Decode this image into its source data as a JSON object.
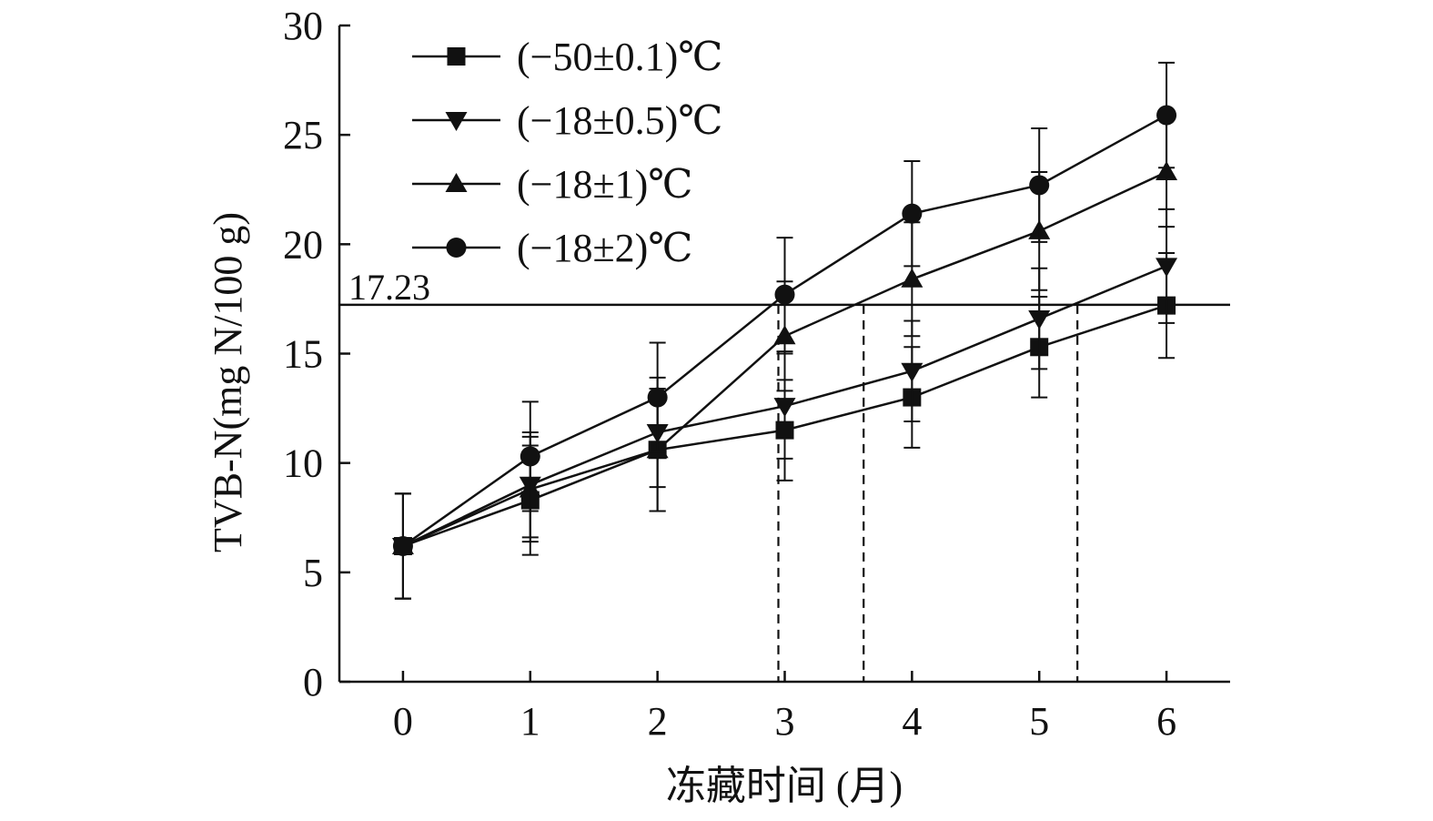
{
  "chart_data": {
    "type": "line",
    "xlabel": "冻藏时间 (月)",
    "ylabel": "TVB-N(mg N/100 g)",
    "x": [
      0,
      1,
      2,
      3,
      4,
      5,
      6
    ],
    "x_tick_labels": [
      "0",
      "1",
      "2",
      "3",
      "4",
      "5",
      "6"
    ],
    "xlim": [
      -0.5,
      6.5
    ],
    "ylim": [
      0,
      30
    ],
    "y_ticks": [
      0,
      5,
      10,
      15,
      20,
      25,
      30
    ],
    "y_tick_labels": [
      "0",
      "5",
      "10",
      "15",
      "20",
      "25",
      "30"
    ],
    "grid": false,
    "legend_position": "top-left",
    "series": [
      {
        "name": "(−50±0.1)℃",
        "marker": "square",
        "values": [
          6.2,
          8.3,
          10.6,
          11.5,
          13.0,
          15.3,
          17.2
        ],
        "errors": [
          2.4,
          2.5,
          2.8,
          2.3,
          2.3,
          2.3,
          2.4
        ]
      },
      {
        "name": "(−18±0.5)℃",
        "marker": "triangle-down",
        "values": [
          6.2,
          9.0,
          11.4,
          12.6,
          14.2,
          16.6,
          19.0
        ],
        "errors": [
          2.4,
          2.4,
          2.5,
          2.4,
          2.3,
          2.3,
          2.6
        ]
      },
      {
        "name": "(−18±1)℃",
        "marker": "triangle-up",
        "values": [
          6.2,
          8.8,
          10.6,
          15.8,
          18.4,
          20.6,
          23.3
        ],
        "errors": [
          2.4,
          2.4,
          2.8,
          2.5,
          2.6,
          2.7,
          2.5
        ]
      },
      {
        "name": "(−18±2)℃",
        "marker": "circle",
        "values": [
          6.2,
          10.3,
          13.0,
          17.7,
          21.4,
          22.7,
          25.9
        ],
        "errors": [
          2.4,
          2.5,
          2.5,
          2.6,
          2.4,
          2.6,
          2.4
        ]
      }
    ],
    "threshold": {
      "value": 17.23,
      "label": "17.23"
    },
    "crossing_x": [
      2.95,
      3.62,
      5.3
    ]
  }
}
